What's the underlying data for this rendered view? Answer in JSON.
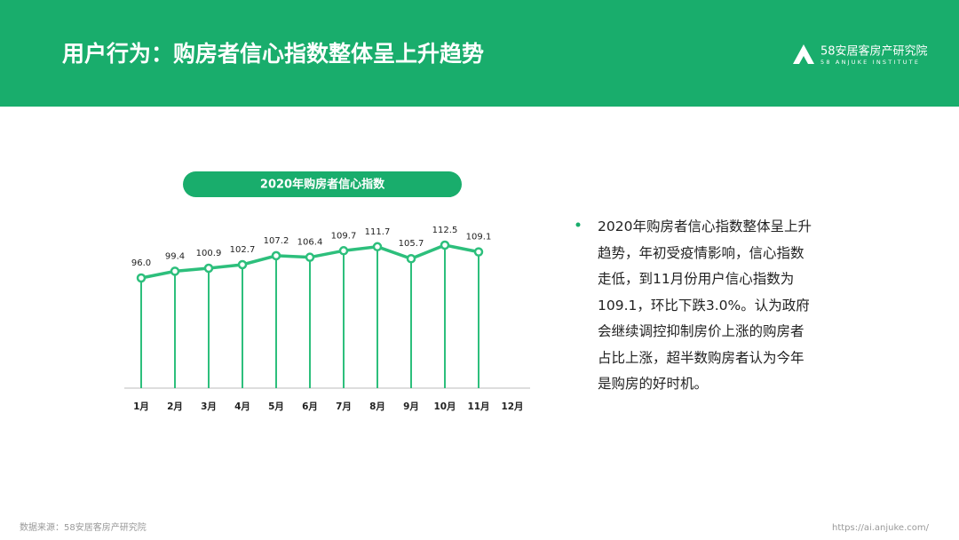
{
  "header": {
    "title": "用户行为：购房者信心指数整体呈上升趋势",
    "logo_name": "58安居客房产研究院",
    "logo_sub": "58 ANJUKE INSTITUTE"
  },
  "chart_data": {
    "type": "line",
    "title": "2020年购房者信心指数",
    "categories": [
      "1月",
      "2月",
      "3月",
      "4月",
      "5月",
      "6月",
      "7月",
      "8月",
      "9月",
      "10月",
      "11月",
      "12月"
    ],
    "values": [
      96.0,
      99.4,
      100.9,
      102.7,
      107.2,
      106.4,
      109.7,
      111.7,
      105.7,
      112.5,
      109.1,
      null
    ],
    "value_labels": [
      "96.0",
      "99.4",
      "100.9",
      "102.7",
      "107.2",
      "106.4",
      "109.7",
      "111.7",
      "105.7",
      "112.5",
      "109.1",
      null
    ],
    "color": "#2dbf7c"
  },
  "text": {
    "lines": [
      "2020年购房者信心指数整体呈上升",
      "趋势，年初受疫情影响，信心指数",
      "走低，到11月份用户信心指数为",
      "109.1，环比下跌3.0%。认为政府",
      "会继续调控抑制房价上涨的购房者",
      "占比上涨，超半数购房者认为今年",
      "是购房的好时机。"
    ]
  },
  "footer": {
    "source": "数据来源：58安居客房产研究院",
    "url": "https://ai.anjuke.com/"
  }
}
